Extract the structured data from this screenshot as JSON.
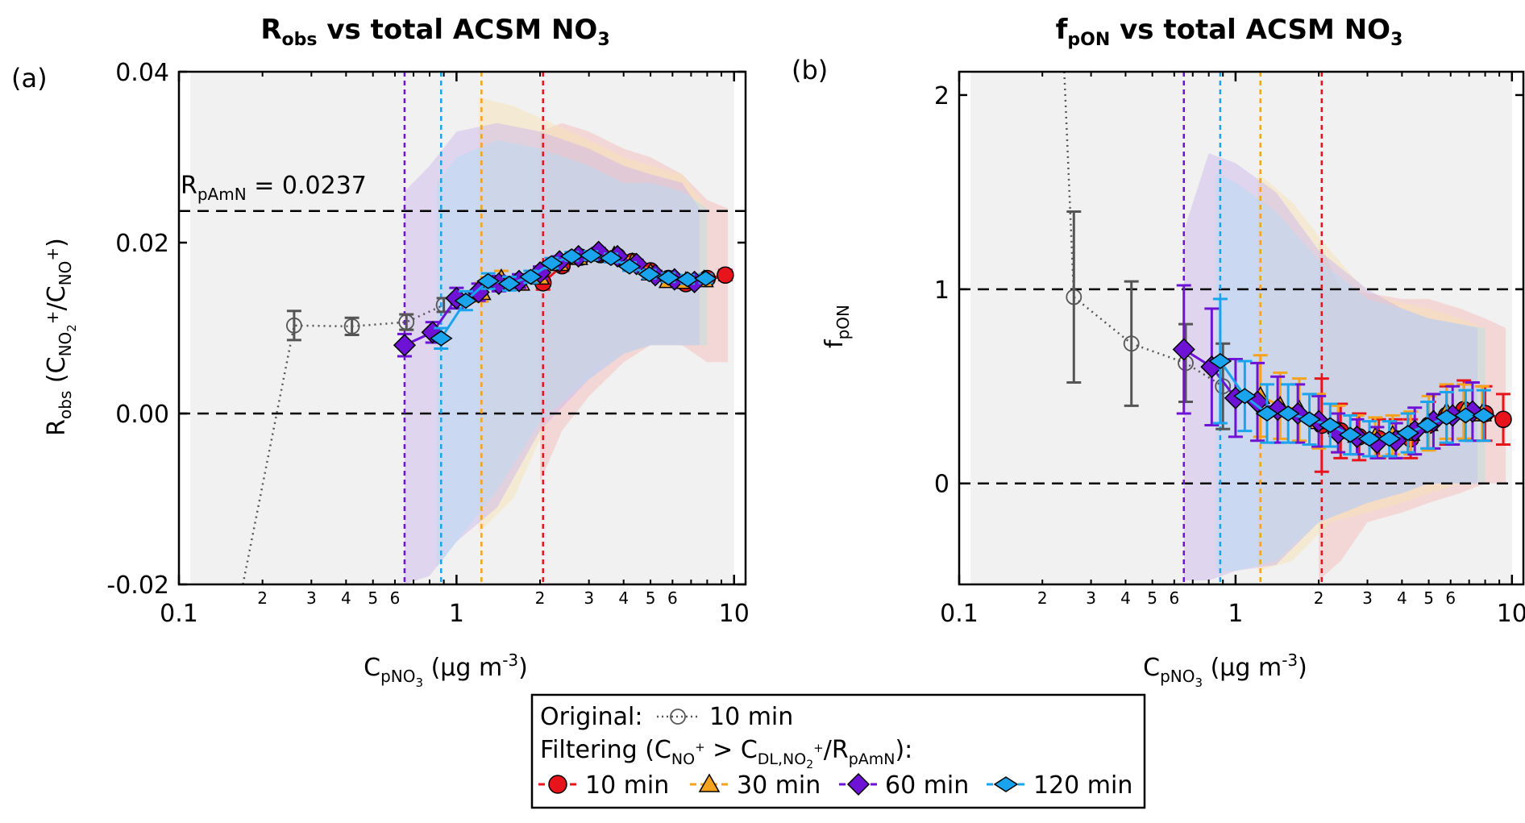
{
  "colors": {
    "s10": "#e8141c",
    "s30": "#f5a31c",
    "s60": "#6e12d6",
    "s120": "#1aa4ee",
    "orig": "#555555",
    "band": "#eeeeee"
  },
  "legend": {
    "original_label": "Original:",
    "original_series": "10 min",
    "filtering_prefix": "Filtering (C",
    "filtering_sub1": "NO",
    "filtering_sup1": "+",
    "filtering_mid": " > C",
    "filtering_sub2": "DL,NO",
    "filtering_sub2b": "2",
    "filtering_sup2": "+",
    "filtering_slash": "/R",
    "filtering_sub3": "pAmN",
    "filtering_end": "):",
    "s10": "10 min",
    "s30": "30 min",
    "s60": "60 min",
    "s120": "120 min"
  },
  "chart_data": [
    {
      "panel": "(a)",
      "type": "line",
      "title_main": "R",
      "title_sub": "obs",
      "title_rest": " vs total ACSM NO",
      "title_sub2": "3",
      "ylabel_main": "R",
      "ylabel_sub": "obs",
      "ylabel_rest1": " (C",
      "ylabel_sub2": "NO",
      "ylabel_sub2b": "2",
      "ylabel_sup2": "+",
      "ylabel_rest2": "/C",
      "ylabel_sub3": "NO",
      "ylabel_sup3": "+",
      "ylabel_rest3": ")",
      "xlabel_main": "C",
      "xlabel_sub": "pNO",
      "xlabel_sub2": "3",
      "xlabel_rest": " (µg m",
      "xlabel_sup": "-3",
      "xlabel_end": ")",
      "xscale": "log",
      "xlim": [
        0.1,
        11
      ],
      "ylim": [
        -0.02,
        0.04
      ],
      "yticks": [
        "-0.02",
        "0.00",
        "0.02",
        "0.04"
      ],
      "ytick_values": [
        -0.02,
        0.0,
        0.02,
        0.04
      ],
      "xticks_major": [
        "0.1",
        "1",
        "10"
      ],
      "xticks_minor": [
        "2",
        "3",
        "4",
        "5",
        "6",
        "2",
        "3",
        "4",
        "5",
        "6"
      ],
      "hlines": [
        0.0237,
        0.0
      ],
      "annotation_main": "R",
      "annotation_sub": "pAmN",
      "annotation_rest": " = 0.0237",
      "vlines": [
        {
          "series": "60 min",
          "x": 0.65
        },
        {
          "series": "120 min",
          "x": 0.88
        },
        {
          "series": "30 min",
          "x": 1.23
        },
        {
          "series": "10 min",
          "x": 2.05
        }
      ],
      "original": {
        "name": "Original: 10 min",
        "x": [
          0.17,
          0.26,
          0.42,
          0.66,
          0.9
        ],
        "y": [
          -0.02,
          0.0103,
          0.0102,
          0.0107,
          0.0127
        ],
        "err": [
          0,
          0.0017,
          0.001,
          0.0009,
          0.0008
        ]
      },
      "series": [
        {
          "name": "10 min",
          "x": [
            2.05,
            2.4,
            2.8,
            3.3,
            3.8,
            4.3,
            5.0,
            5.8,
            6.7,
            8.0,
            9.3
          ],
          "y": [
            0.0153,
            0.0173,
            0.0183,
            0.0186,
            0.0184,
            0.0178,
            0.0167,
            0.0158,
            0.0152,
            0.0158,
            0.0162
          ],
          "err": [
            0.0008,
            0.0006,
            0.0005,
            0.0005,
            0.0005,
            0.0005,
            0.0005,
            0.0005,
            0.0005,
            0.0005,
            0.0006
          ]
        },
        {
          "name": "30 min",
          "x": [
            1.23,
            1.45,
            1.7,
            2.0,
            2.35,
            2.75,
            3.2,
            3.7,
            4.3,
            5.0,
            5.8,
            6.7,
            7.8
          ],
          "y": [
            0.0142,
            0.0158,
            0.0153,
            0.016,
            0.0176,
            0.0183,
            0.0187,
            0.0185,
            0.0177,
            0.0165,
            0.0156,
            0.0155,
            0.0157
          ],
          "err": [
            0.0011,
            0.0009,
            0.0008,
            0.0007,
            0.0006,
            0.0005,
            0.0005,
            0.0005,
            0.0005,
            0.0005,
            0.0005,
            0.0005,
            0.0005
          ]
        },
        {
          "name": "60 min",
          "x": [
            0.65,
            0.82,
            1.0,
            1.2,
            1.42,
            1.68,
            2.0,
            2.35,
            2.75,
            3.25,
            3.8,
            4.45,
            5.2,
            6.1,
            7.2
          ],
          "y": [
            0.008,
            0.0095,
            0.0135,
            0.0142,
            0.0152,
            0.0155,
            0.0165,
            0.0178,
            0.0184,
            0.0189,
            0.0184,
            0.0175,
            0.0162,
            0.0157,
            0.0154
          ],
          "err": [
            0.0013,
            0.0012,
            0.0012,
            0.001,
            0.0009,
            0.0008,
            0.0007,
            0.0006,
            0.0005,
            0.0005,
            0.0005,
            0.0005,
            0.0005,
            0.0005,
            0.0005
          ]
        },
        {
          "name": "120 min",
          "x": [
            0.88,
            1.08,
            1.3,
            1.55,
            1.85,
            2.2,
            2.6,
            3.05,
            3.6,
            4.2,
            4.95,
            5.8,
            6.8,
            7.9
          ],
          "y": [
            0.0088,
            0.0132,
            0.0155,
            0.0152,
            0.016,
            0.0176,
            0.0184,
            0.0185,
            0.0182,
            0.0172,
            0.0163,
            0.0159,
            0.0157,
            0.0158
          ],
          "err": [
            0.0012,
            0.0011,
            0.0009,
            0.0008,
            0.0007,
            0.0006,
            0.0005,
            0.0005,
            0.0005,
            0.0005,
            0.0005,
            0.0005,
            0.0005,
            0.0005
          ]
        }
      ],
      "bands": [
        {
          "series": "original",
          "x": [
            0.11,
            0.5,
            1.0,
            1.3,
            1.5,
            10
          ],
          "lo": [
            -0.02,
            -0.02,
            -0.02,
            -0.02,
            -0.02,
            -0.02
          ],
          "hi": [
            0.04,
            0.04,
            0.04,
            0.04,
            0.04,
            0.04
          ]
        },
        {
          "series": "10 min",
          "x": [
            2.0,
            2.4,
            3.0,
            4.0,
            5.0,
            6.5,
            8.0,
            9.5
          ],
          "lo": [
            -0.008,
            -0.002,
            0.002,
            0.006,
            0.008,
            0.008,
            0.006,
            0.006
          ],
          "hi": [
            0.033,
            0.034,
            0.033,
            0.031,
            0.03,
            0.028,
            0.025,
            0.024
          ]
        },
        {
          "series": "30 min",
          "x": [
            1.2,
            1.6,
            2.2,
            3.0,
            4.0,
            5.0,
            6.5,
            8.0
          ],
          "lo": [
            -0.014,
            -0.01,
            0.0,
            0.005,
            0.007,
            0.008,
            0.008,
            0.008
          ],
          "hi": [
            0.037,
            0.036,
            0.034,
            0.032,
            0.03,
            0.029,
            0.028,
            0.024
          ]
        },
        {
          "series": "60 min",
          "x": [
            0.65,
            0.8,
            1.0,
            1.4,
            2.0,
            3.0,
            4.0,
            5.0,
            6.5,
            7.5
          ],
          "lo": [
            -0.02,
            -0.019,
            -0.015,
            -0.011,
            -0.002,
            0.004,
            0.007,
            0.008,
            0.008,
            0.008
          ],
          "hi": [
            0.026,
            0.029,
            0.033,
            0.034,
            0.033,
            0.031,
            0.029,
            0.028,
            0.027,
            0.024
          ]
        },
        {
          "series": "120 min",
          "x": [
            0.85,
            1.0,
            1.4,
            2.0,
            3.0,
            4.0,
            5.0,
            6.5,
            8.0
          ],
          "lo": [
            -0.018,
            -0.015,
            -0.009,
            -0.001,
            0.004,
            0.007,
            0.008,
            0.008,
            0.008
          ],
          "hi": [
            0.027,
            0.03,
            0.032,
            0.031,
            0.029,
            0.027,
            0.027,
            0.026,
            0.024
          ]
        }
      ]
    },
    {
      "panel": "(b)",
      "type": "line",
      "title_main": "f",
      "title_sub": "pON",
      "title_rest": " vs total ACSM NO",
      "title_sub2": "3",
      "ylabel_main": "f",
      "ylabel_sub": "pON",
      "xlabel_main": "C",
      "xlabel_sub": "pNO",
      "xlabel_sub2": "3",
      "xlabel_rest": " (µg m",
      "xlabel_sup": "-3",
      "xlabel_end": ")",
      "xscale": "log",
      "xlim": [
        0.1,
        11
      ],
      "ylim": [
        -0.52,
        2.12
      ],
      "yticks": [
        "0",
        "1",
        "2"
      ],
      "ytick_values": [
        0,
        1,
        2
      ],
      "xticks_major": [
        "0.1",
        "1",
        "10"
      ],
      "xticks_minor": [
        "2",
        "3",
        "4",
        "5",
        "6",
        "2",
        "3",
        "4",
        "5",
        "6"
      ],
      "hlines": [
        1,
        0
      ],
      "vlines": [
        {
          "series": "60 min",
          "x": 0.65
        },
        {
          "series": "120 min",
          "x": 0.88
        },
        {
          "series": "30 min",
          "x": 1.23
        },
        {
          "series": "10 min",
          "x": 2.05
        }
      ],
      "original": {
        "name": "Original: 10 min",
        "x": [
          0.24,
          0.26,
          0.42,
          0.66,
          0.9
        ],
        "y": [
          2.12,
          0.96,
          0.72,
          0.62,
          0.5
        ],
        "err": [
          0,
          0.44,
          0.32,
          0.2,
          0.22
        ]
      },
      "series": [
        {
          "name": "10 min",
          "x": [
            2.05,
            2.4,
            2.8,
            3.3,
            3.8,
            4.3,
            5.0,
            5.8,
            6.7,
            8.0,
            9.3
          ],
          "y": [
            0.3,
            0.27,
            0.24,
            0.23,
            0.23,
            0.23,
            0.3,
            0.35,
            0.38,
            0.36,
            0.33
          ],
          "err": [
            0.24,
            0.14,
            0.12,
            0.1,
            0.1,
            0.1,
            0.12,
            0.15,
            0.15,
            0.14,
            0.13
          ]
        },
        {
          "name": "30 min",
          "x": [
            1.23,
            1.45,
            1.7,
            2.0,
            2.35,
            2.75,
            3.2,
            3.7,
            4.3,
            5.0,
            5.8,
            6.7,
            7.8
          ],
          "y": [
            0.45,
            0.4,
            0.38,
            0.32,
            0.28,
            0.25,
            0.24,
            0.25,
            0.26,
            0.31,
            0.37,
            0.37,
            0.36
          ],
          "err": [
            0.21,
            0.17,
            0.16,
            0.14,
            0.12,
            0.1,
            0.1,
            0.1,
            0.11,
            0.14,
            0.14,
            0.14,
            0.14
          ]
        },
        {
          "name": "60 min",
          "x": [
            0.65,
            0.82,
            1.0,
            1.2,
            1.42,
            1.68,
            2.0,
            2.35,
            2.75,
            3.25,
            3.8,
            4.45,
            5.2,
            6.1,
            7.2
          ],
          "y": [
            0.69,
            0.6,
            0.44,
            0.42,
            0.38,
            0.36,
            0.32,
            0.26,
            0.24,
            0.21,
            0.22,
            0.27,
            0.32,
            0.35,
            0.37
          ],
          "err": [
            0.33,
            0.3,
            0.2,
            0.2,
            0.17,
            0.15,
            0.13,
            0.1,
            0.09,
            0.08,
            0.09,
            0.12,
            0.14,
            0.15,
            0.15
          ]
        },
        {
          "name": "120 min",
          "x": [
            0.88,
            1.08,
            1.3,
            1.55,
            1.85,
            2.2,
            2.6,
            3.05,
            3.6,
            4.2,
            4.95,
            5.8,
            6.8,
            7.9
          ],
          "y": [
            0.63,
            0.45,
            0.36,
            0.36,
            0.33,
            0.3,
            0.25,
            0.23,
            0.23,
            0.26,
            0.3,
            0.34,
            0.35,
            0.35
          ],
          "err": [
            0.32,
            0.18,
            0.15,
            0.15,
            0.13,
            0.11,
            0.1,
            0.09,
            0.09,
            0.1,
            0.12,
            0.13,
            0.13,
            0.13
          ]
        }
      ],
      "bands": [
        {
          "series": "original",
          "x": [
            0.11,
            0.5,
            1.0,
            1.3,
            10
          ],
          "lo": [
            -0.52,
            -0.52,
            -0.52,
            -0.52,
            -0.52
          ],
          "hi": [
            2.12,
            2.12,
            2.12,
            2.12,
            2.12
          ]
        },
        {
          "series": "10 min",
          "x": [
            2.0,
            2.4,
            3.0,
            4.0,
            5.0,
            6.5,
            8.0,
            9.5
          ],
          "lo": [
            -0.5,
            -0.4,
            -0.2,
            -0.15,
            -0.1,
            -0.05,
            0.0,
            0.0
          ],
          "hi": [
            1.25,
            1.0,
            0.98,
            0.95,
            0.95,
            0.9,
            0.85,
            0.8
          ]
        },
        {
          "series": "30 min",
          "x": [
            1.2,
            1.6,
            2.2,
            3.0,
            4.0,
            5.0,
            6.5,
            8.0
          ],
          "lo": [
            -0.45,
            -0.4,
            -0.2,
            -0.15,
            -0.1,
            -0.05,
            0.0,
            0.0
          ],
          "hi": [
            1.6,
            1.45,
            1.2,
            0.98,
            0.93,
            0.9,
            0.85,
            0.8
          ]
        },
        {
          "series": "60 min",
          "x": [
            0.65,
            0.8,
            1.0,
            1.4,
            2.0,
            3.0,
            4.0,
            5.0,
            6.5,
            7.5
          ],
          "lo": [
            -0.5,
            -0.5,
            -0.45,
            -0.42,
            -0.2,
            -0.1,
            -0.05,
            0.0,
            0.0,
            0.0
          ],
          "hi": [
            1.3,
            1.7,
            1.65,
            1.5,
            1.2,
            1.0,
            0.9,
            0.85,
            0.82,
            0.8
          ]
        },
        {
          "series": "120 min",
          "x": [
            0.85,
            1.0,
            1.4,
            2.0,
            3.0,
            4.0,
            5.0,
            6.5,
            8.0
          ],
          "lo": [
            -0.45,
            -0.45,
            -0.4,
            -0.2,
            -0.1,
            -0.05,
            0.0,
            0.0,
            0.0
          ],
          "hi": [
            1.6,
            1.55,
            1.4,
            1.15,
            0.95,
            0.9,
            0.85,
            0.82,
            0.8
          ]
        }
      ]
    }
  ]
}
